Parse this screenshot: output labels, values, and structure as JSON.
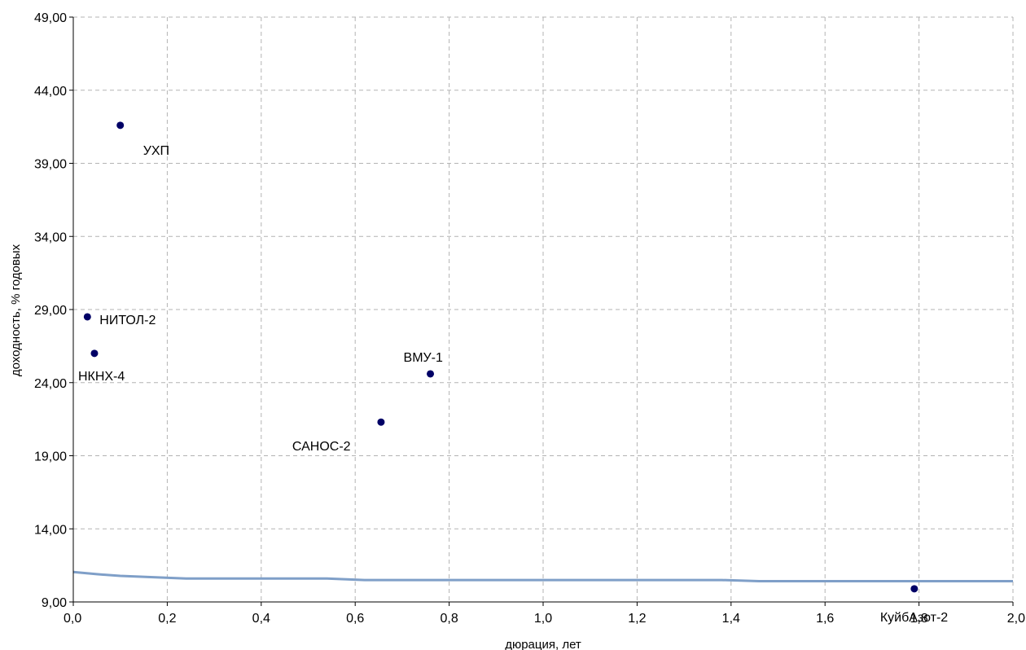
{
  "chart_data": {
    "type": "scatter",
    "title": "",
    "xlabel": "дюрация, лет",
    "ylabel": "доходность, % годовых",
    "xlim": [
      0,
      2
    ],
    "ylim": [
      9,
      49
    ],
    "x_ticks": [
      "0,0",
      "0,2",
      "0,4",
      "0,6",
      "0,8",
      "1,0",
      "1,2",
      "1,4",
      "1,6",
      "1,8",
      "2,0"
    ],
    "y_ticks": [
      "9,00",
      "14,00",
      "19,00",
      "24,00",
      "29,00",
      "34,00",
      "39,00",
      "44,00",
      "49,00"
    ],
    "grid": true,
    "points": [
      {
        "label": "УХП",
        "x": 0.1,
        "y": 41.6
      },
      {
        "label": "НИТОЛ-2",
        "x": 0.03,
        "y": 28.5
      },
      {
        "label": "НКНХ-4",
        "x": 0.045,
        "y": 26.0
      },
      {
        "label": "ВМУ-1",
        "x": 0.76,
        "y": 24.6
      },
      {
        "label": "САНОС-2",
        "x": 0.655,
        "y": 21.3
      },
      {
        "label": "КуйбАзот-2",
        "x": 1.79,
        "y": 9.9
      }
    ],
    "curve": {
      "x": [
        0.0,
        0.05,
        0.1,
        0.24,
        0.54,
        0.62,
        1.0,
        1.38,
        1.46,
        1.8,
        2.0
      ],
      "y": [
        11.05,
        10.9,
        10.78,
        10.6,
        10.6,
        10.5,
        10.5,
        10.5,
        10.42,
        10.42,
        10.42
      ]
    },
    "colors": {
      "marker": "#000066",
      "curve": "#7f9fc8",
      "grid": "#b3b3b3",
      "axis": "#000000"
    }
  }
}
